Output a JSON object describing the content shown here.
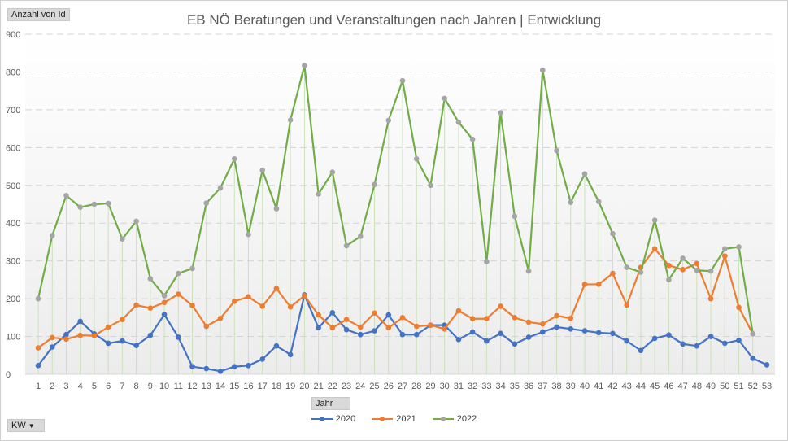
{
  "field_buttons": {
    "value_field": "Anzahl von Id",
    "axis_field": "Jahr",
    "filter_field": "KW"
  },
  "chart_data": {
    "type": "line",
    "title": "EB NÖ Beratungen und Veranstaltungen nach Jahren | Entwicklung",
    "xlabel": "",
    "ylabel": "",
    "ylim": [
      0,
      900
    ],
    "yticks": [
      0,
      100,
      200,
      300,
      400,
      500,
      600,
      700,
      800,
      900
    ],
    "grid": true,
    "legend_position": "bottom",
    "categories": [
      "1",
      "2",
      "3",
      "4",
      "5",
      "6",
      "7",
      "8",
      "9",
      "10",
      "11",
      "12",
      "13",
      "14",
      "15",
      "16",
      "17",
      "18",
      "19",
      "20",
      "21",
      "22",
      "23",
      "24",
      "25",
      "26",
      "27",
      "28",
      "29",
      "30",
      "31",
      "32",
      "33",
      "34",
      "35",
      "36",
      "37",
      "38",
      "39",
      "40",
      "41",
      "42",
      "43",
      "44",
      "45",
      "46",
      "47",
      "48",
      "49",
      "50",
      "51",
      "52",
      "53"
    ],
    "series": [
      {
        "name": "2020",
        "color": "#4472c4",
        "values": [
          23,
          72,
          105,
          140,
          107,
          82,
          88,
          76,
          103,
          158,
          98,
          20,
          15,
          8,
          20,
          23,
          40,
          75,
          52,
          210,
          123,
          163,
          118,
          105,
          115,
          157,
          105,
          105,
          130,
          130,
          92,
          112,
          88,
          108,
          80,
          98,
          112,
          125,
          120,
          115,
          110,
          108,
          88,
          63,
          95,
          104,
          80,
          75,
          100,
          82,
          90,
          42,
          25
        ]
      },
      {
        "name": "2021",
        "color": "#ed7d31",
        "values": [
          70,
          97,
          93,
          103,
          102,
          125,
          145,
          183,
          175,
          190,
          212,
          182,
          127,
          148,
          193,
          205,
          180,
          227,
          178,
          208,
          157,
          123,
          145,
          125,
          162,
          123,
          150,
          127,
          130,
          120,
          168,
          147,
          147,
          180,
          150,
          138,
          133,
          155,
          148,
          238,
          238,
          267,
          183,
          283,
          332,
          288,
          277,
          293,
          200,
          313,
          177,
          107,
          null
        ]
      },
      {
        "name": "2022",
        "color": "#70ad47",
        "marker_color": "#a5a5a5",
        "values": [
          200,
          367,
          473,
          442,
          450,
          452,
          358,
          405,
          253,
          208,
          267,
          280,
          453,
          493,
          570,
          370,
          540,
          438,
          673,
          817,
          477,
          535,
          340,
          365,
          502,
          672,
          777,
          570,
          500,
          730,
          667,
          622,
          298,
          692,
          418,
          273,
          805,
          592,
          455,
          530,
          457,
          372,
          283,
          270,
          408,
          250,
          307,
          275,
          273,
          332,
          337,
          107,
          null
        ]
      }
    ]
  }
}
